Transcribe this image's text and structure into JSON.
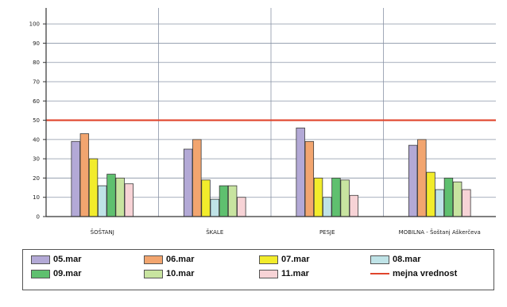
{
  "chart_data": {
    "type": "bar",
    "categories": [
      "ŠOŠTANJ",
      "ŠKALE",
      "PESJE",
      "MOBILNA - Šoštanj Aškerčeva"
    ],
    "yticks": [
      "0",
      "10",
      "20",
      "30",
      "40",
      "50",
      "60",
      "70",
      "80",
      "90",
      "100"
    ],
    "ylim": [
      0,
      105
    ],
    "grid": true,
    "legend_position": "bottom",
    "series": [
      {
        "name": "05.mar",
        "color": "#b3a9d6",
        "values": [
          39,
          35,
          46,
          37
        ]
      },
      {
        "name": "06.mar",
        "color": "#f2a56f",
        "values": [
          43,
          40,
          39,
          40
        ]
      },
      {
        "name": "07.mar",
        "color": "#f2ec2b",
        "values": [
          30,
          19,
          20,
          23
        ]
      },
      {
        "name": "08.mar",
        "color": "#bfe3e7",
        "values": [
          16,
          9,
          10,
          14
        ]
      },
      {
        "name": "09.mar",
        "color": "#5fc06f",
        "values": [
          22,
          16,
          20,
          20
        ]
      },
      {
        "name": "10.mar",
        "color": "#c8e4a0",
        "values": [
          20,
          16,
          19,
          18
        ]
      },
      {
        "name": "11.mar",
        "color": "#f7d3d6",
        "values": [
          17,
          10,
          11,
          14
        ]
      }
    ],
    "limit_line": {
      "name": "mejna vrednost",
      "value": 50,
      "color": "#e0452c"
    }
  }
}
